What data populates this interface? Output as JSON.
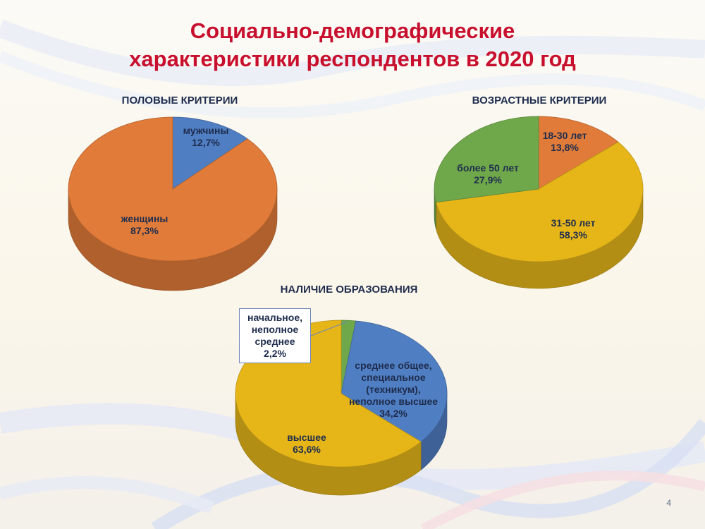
{
  "title": [
    "Социально-демографические",
    "характеристики респондентов в 2020 год"
  ],
  "page_number": "4",
  "colors": {
    "title": "#c8102e",
    "orange": "#e07b39",
    "blue": "#4f7ec2",
    "gold": "#e6b619",
    "green": "#6fa84a",
    "label": "#1f2d4e"
  },
  "chart_data": [
    {
      "type": "pie",
      "title": "ПОЛОВЫЕ КРИТЕРИИ",
      "slices": [
        {
          "label": [
            "мужчины"
          ],
          "value_text": "12,7%",
          "value": 12.7,
          "color": "#4f7ec2"
        },
        {
          "label": [
            "женщины"
          ],
          "value_text": "87,3%",
          "value": 87.3,
          "color": "#e07b39"
        }
      ]
    },
    {
      "type": "pie",
      "title": "ВОЗРАСТНЫЕ КРИТЕРИИ",
      "slices": [
        {
          "label": [
            "18-30 лет"
          ],
          "value_text": "13,8%",
          "value": 13.8,
          "color": "#e07b39"
        },
        {
          "label": [
            "31-50 лет"
          ],
          "value_text": "58,3%",
          "value": 58.3,
          "color": "#e6b619"
        },
        {
          "label": [
            "более 50 лет"
          ],
          "value_text": "27,9%",
          "value": 27.9,
          "color": "#6fa84a"
        }
      ]
    },
    {
      "type": "pie",
      "title": "НАЛИЧИЕ ОБРАЗОВАНИЯ",
      "slices": [
        {
          "label": [
            "начальное,",
            "неполное",
            "среднее"
          ],
          "value_text": "2,2%",
          "value": 2.2,
          "color": "#6fa84a"
        },
        {
          "label": [
            "среднее общее,",
            "специальное",
            "(техникум),",
            "неполное высшее"
          ],
          "value_text": "34,2%",
          "value": 34.2,
          "color": "#4f7ec2"
        },
        {
          "label": [
            "высшее"
          ],
          "value_text": "63,6%",
          "value": 63.6,
          "color": "#e6b619"
        }
      ]
    }
  ]
}
